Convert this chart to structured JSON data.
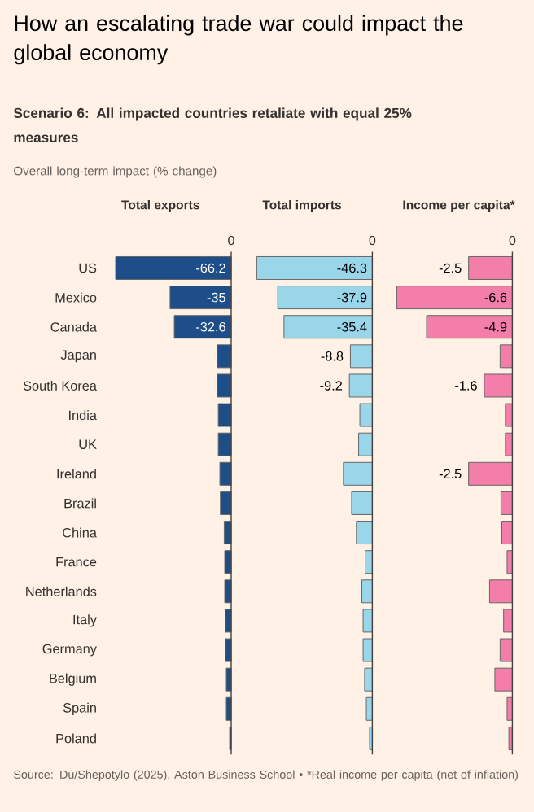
{
  "chart_data": [
    {
      "type": "other",
      "title": "How an escalating trade war could impact the global economy",
      "subtitle": "Scenario 6: All impacted countries retaliate with equal 25% measures",
      "annotations": [
        "Overall long-term impact (% change)",
        "Source: Du/Shepotylo (2025), Aston Business School • *Real income per capita (net of inflation)"
      ]
    },
    {
      "type": "bar",
      "orientation": "horizontal",
      "title": "Total exports",
      "annotations": [
        "0"
      ],
      "categories": [
        "US",
        "Mexico",
        "Canada",
        "Japan",
        "South Korea",
        "India",
        "UK",
        "Ireland",
        "Brazil",
        "China",
        "France",
        "Netherlands",
        "Italy",
        "Germany",
        "Belgium",
        "Spain",
        "Poland"
      ],
      "color": "#1d4e89",
      "values": [
        -66.2,
        -35,
        -32.6,
        -8.0,
        -8.0,
        -7.4,
        -7.4,
        -6.5,
        -6.2,
        -4.0,
        -3.7,
        -3.7,
        -3.4,
        -3.4,
        -2.8,
        -2.8,
        -0.9
      ],
      "value_labels": [
        "-66.2",
        "-35",
        "-32.6",
        null,
        null,
        null,
        null,
        null,
        null,
        null,
        null,
        null,
        null,
        null,
        null,
        null,
        null
      ]
    },
    {
      "type": "bar",
      "orientation": "horizontal",
      "title": "Total imports",
      "annotations": [
        "0"
      ],
      "color": "#9ad6ea",
      "values": [
        -46.3,
        -37.9,
        -35.4,
        -8.8,
        -9.2,
        -5.0,
        -5.5,
        -11.6,
        -8.3,
        -6.4,
        -2.9,
        -4.2,
        -3.7,
        -3.7,
        -3.1,
        -2.4,
        -1.1
      ],
      "value_labels": [
        "-46.3",
        "-37.9",
        "-35.4",
        "-8.8",
        "-9.2",
        null,
        null,
        null,
        null,
        null,
        null,
        null,
        null,
        null,
        null,
        null,
        null
      ]
    },
    {
      "type": "bar",
      "orientation": "horizontal",
      "title": "Income per capita*",
      "annotations": [
        "0"
      ],
      "color": "#f27ea9",
      "values": [
        -2.5,
        -6.6,
        -4.9,
        -0.7,
        -1.6,
        -0.4,
        -0.4,
        -2.5,
        -0.65,
        -0.6,
        -0.3,
        -1.3,
        -0.5,
        -0.7,
        -1.0,
        -0.3,
        -0.2
      ],
      "value_labels": [
        "-2.5",
        "-6.6",
        "-4.9",
        null,
        "-1.6",
        null,
        null,
        "-2.5",
        null,
        null,
        null,
        null,
        null,
        null,
        null,
        null,
        null
      ]
    }
  ]
}
